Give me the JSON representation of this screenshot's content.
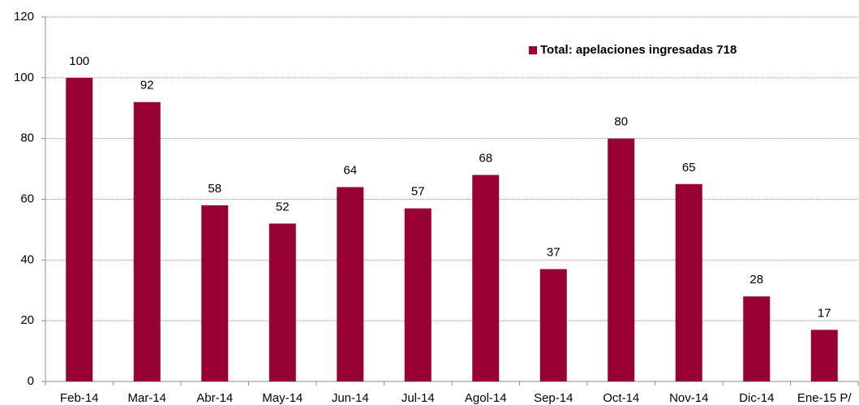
{
  "chart_data": {
    "type": "bar",
    "categories": [
      "Feb-14",
      "Mar-14",
      "Abr-14",
      "May-14",
      "Jun-14",
      "Jul-14",
      "Agol-14",
      "Sep-14",
      "Oct-14",
      "Nov-14",
      "Dic-14",
      "Ene-15 P/"
    ],
    "series": [
      {
        "name": "Total: apelaciones ingresadas 718",
        "color": "#990033",
        "values": [
          100,
          92,
          58,
          52,
          64,
          57,
          68,
          37,
          80,
          65,
          28,
          17
        ]
      }
    ],
    "ylim": [
      0,
      120
    ],
    "yticks": [
      0,
      20,
      40,
      60,
      80,
      100,
      120
    ],
    "grid": true,
    "legend": "top-right"
  }
}
